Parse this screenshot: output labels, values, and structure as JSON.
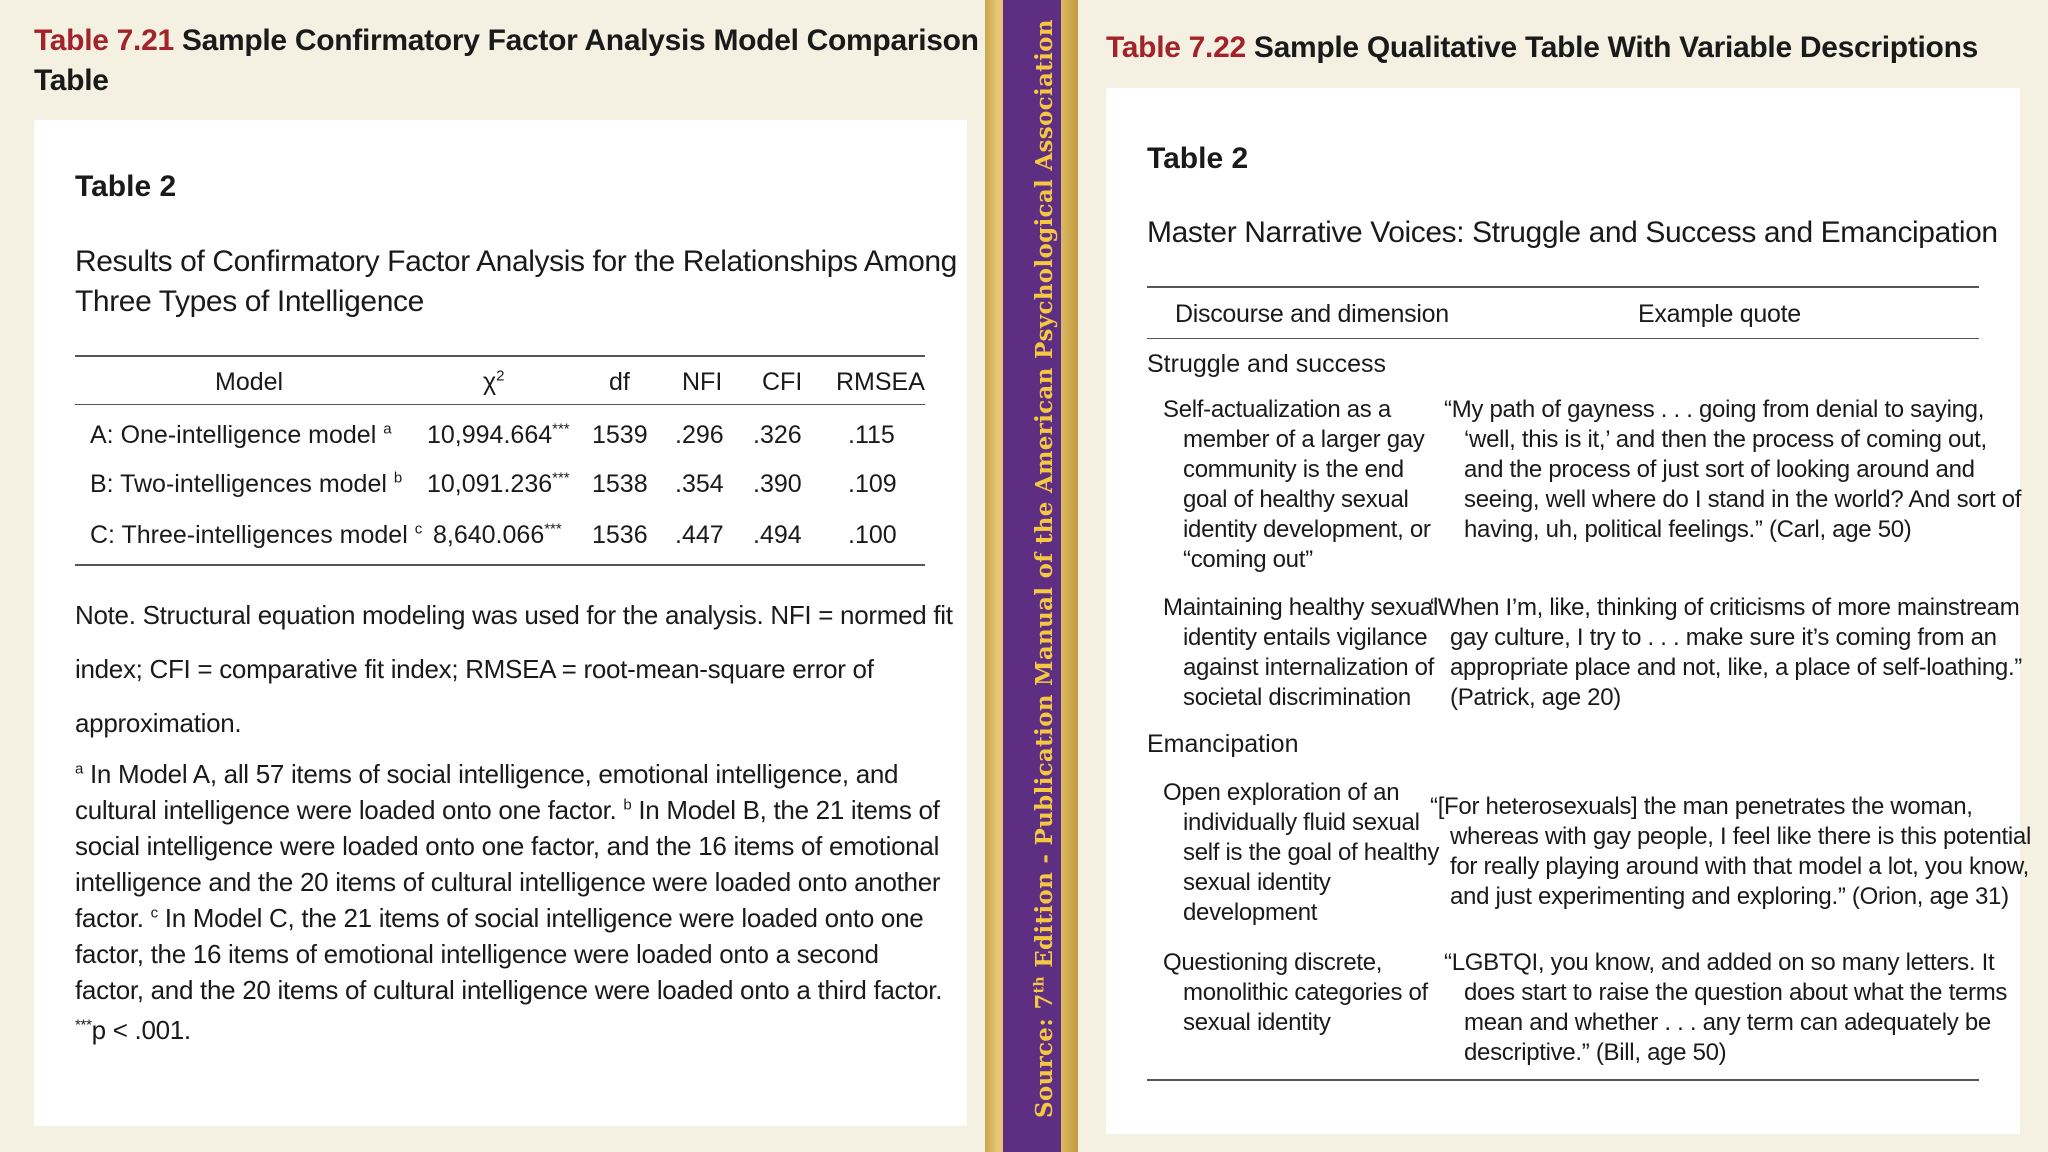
{
  "left": {
    "panel_title_num": "Table 7.21",
    "panel_title_text": " Sample Confirmatory Factor Analysis Model Comparison",
    "panel_title_text2": "Table",
    "table_label": "Table 2",
    "caption_line1": "Results of Confirmatory Factor Analysis for the Relationships Among",
    "caption_line2": "Three Types of Intelligence",
    "headers": [
      "Model",
      "χ",
      "2",
      "df",
      "NFI",
      "CFI",
      "RMSEA"
    ],
    "rows": [
      {
        "model": "A: One-intelligence model",
        "sup": "a",
        "chi": "10,994.664",
        "chi_sup": "***",
        "df": "1539",
        "nfi": ".296",
        "cfi": ".326",
        "rmsea": ".115"
      },
      {
        "model": "B: Two-intelligences model",
        "sup": "b",
        "chi": "10,091.236",
        "chi_sup": "***",
        "df": "1538",
        "nfi": ".354",
        "cfi": ".390",
        "rmsea": ".109"
      },
      {
        "model": "C: Three-intelligences model",
        "sup": "c",
        "chi": "8,640.066",
        "chi_sup": "***",
        "df": "1536",
        "nfi": ".447",
        "cfi": ".494",
        "rmsea": ".100"
      }
    ],
    "note_lines": [
      "Note. Structural equation modeling was used for the analysis. NFI = normed fit",
      "index; CFI = comparative fit index; RMSEA = root-mean-square error of",
      "approximation."
    ],
    "fn_a_sup": "a",
    "fn_a_1": " In Model A, all 57 items of social intelligence, emotional intelligence, and",
    "fn_a_2": "cultural intelligence were loaded onto one factor. ",
    "fn_b_sup": "b",
    "fn_b_1": " In Model B, the 21 items of",
    "fn_b_2": "social intelligence were loaded onto one factor, and the 16 items of emotional",
    "fn_b_3": "intelligence and the 20 items of cultural intelligence were loaded onto another",
    "fn_c_pre": "factor. ",
    "fn_c_sup": "c",
    "fn_c_1": " In Model C, the 21 items of social intelligence were loaded onto one",
    "fn_c_2": "factor, the 16 items of emotional intelligence were loaded onto a second",
    "fn_c_3": "factor, and the 20 items of cultural intelligence were loaded onto a third factor.",
    "p_sup": "***",
    "p_text": "p < .001."
  },
  "spine": {
    "source": "Source:",
    "ed": " 7",
    "th": "th",
    "rest": " Edition - Publication Manual of the American Psychological Association"
  },
  "right": {
    "panel_title_num": "Table 7.22",
    "panel_title_text": " Sample Qualitative Table With Variable Descriptions",
    "table_label": "Table 2",
    "caption": "Master Narrative Voices: Struggle and Success and Emancipation",
    "headers": [
      "Discourse and dimension",
      "Example quote"
    ],
    "sections": [
      {
        "name": "Struggle and success",
        "items": [
          {
            "dimension": [
              "Self-actualization as a",
              "member of a larger gay",
              "community is the end",
              "goal of healthy sexual",
              "identity development, or",
              "“coming out”"
            ],
            "quote": [
              "“My path of gayness . . . going from denial to saying,",
              "‘well, this is it,’ and then the process of coming out,",
              "and the process of just sort of looking around and",
              "seeing, well where do I stand in the world? And sort of",
              "having, uh, political feelings.” (Carl, age 50)"
            ]
          },
          {
            "dimension": [
              "Maintaining healthy sexual",
              "identity entails vigilance",
              "against internalization of",
              "societal discrimination"
            ],
            "quote": [
              "“When I’m, like, thinking of criticisms of more mainstream",
              "gay culture, I try to . . . make sure it’s coming from an",
              "appropriate place and not, like, a place of self-loathing.”",
              "(Patrick, age 20)"
            ]
          }
        ]
      },
      {
        "name": "Emancipation",
        "items": [
          {
            "dimension": [
              "Open exploration of an",
              "individually fluid sexual",
              "self is the goal of healthy",
              "sexual identity",
              "development"
            ],
            "quote": [
              "“[For heterosexuals] the man penetrates the woman,",
              "whereas with gay people, I feel like there is this potential",
              "for really playing around with that model a lot, you know,",
              "and just experimenting and exploring.” (Orion, age 31)"
            ]
          },
          {
            "dimension": [
              "Questioning discrete,",
              "monolithic categories of",
              "sexual identity"
            ],
            "quote": [
              "“LGBTQI, you know, and added on so many letters. It",
              "does start to raise the question about what the terms",
              "mean and whether . . . any term can adequately be",
              "descriptive.” (Bill, age 50)"
            ]
          }
        ]
      }
    ]
  }
}
